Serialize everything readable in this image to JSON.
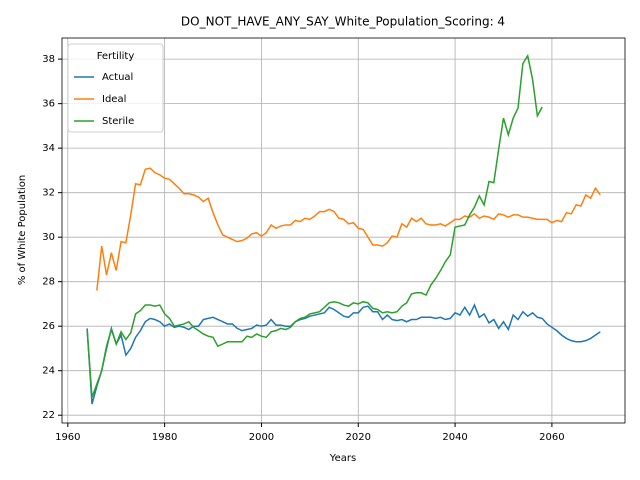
{
  "chart_data": {
    "type": "line",
    "title": "DO_NOT_HAVE_ANY_SAY_White_Population_Scoring: 4",
    "x_label": "Years",
    "y_label": "% of White Population",
    "legend_title": "Fertility",
    "legend_position": "upper left",
    "grid": true,
    "xlim": [
      1958.8,
      2075.1
    ],
    "xticks": [
      1960,
      1980,
      2000,
      2020,
      2040,
      2060
    ],
    "ylim": [
      21.65,
      38.95
    ],
    "yticks": [
      22,
      24,
      26,
      28,
      30,
      32,
      34,
      36,
      38
    ],
    "x": [
      1964,
      1965,
      1966,
      1967,
      1968,
      1969,
      1970,
      1971,
      1972,
      1973,
      1974,
      1975,
      1976,
      1977,
      1978,
      1979,
      1980,
      1981,
      1982,
      1983,
      1984,
      1985,
      1986,
      1987,
      1988,
      1989,
      1990,
      1991,
      1992,
      1993,
      1994,
      1995,
      1996,
      1997,
      1998,
      1999,
      2000,
      2001,
      2002,
      2003,
      2004,
      2005,
      2006,
      2007,
      2008,
      2009,
      2010,
      2011,
      2012,
      2013,
      2014,
      2015,
      2016,
      2017,
      2018,
      2019,
      2020,
      2021,
      2022,
      2023,
      2024,
      2025,
      2026,
      2027,
      2028,
      2029,
      2030,
      2031,
      2032,
      2033,
      2034,
      2035,
      2036,
      2037,
      2038,
      2039,
      2040,
      2041,
      2042,
      2043,
      2044,
      2045,
      2046,
      2047,
      2048,
      2049,
      2050,
      2051,
      2052,
      2053,
      2054,
      2055,
      2056,
      2057,
      2058,
      2059,
      2060,
      2061,
      2062,
      2063,
      2064,
      2065,
      2066,
      2067,
      2068,
      2069,
      2070
    ],
    "series": [
      {
        "name": "Actual",
        "color": "#1f77b4",
        "values": [
          25.9,
          22.5,
          23.3,
          24.0,
          25.0,
          25.9,
          25.2,
          25.6,
          24.7,
          25.0,
          25.5,
          25.8,
          26.2,
          26.35,
          26.3,
          26.2,
          26.0,
          26.1,
          25.95,
          26.0,
          25.95,
          25.85,
          26.0,
          26.0,
          26.3,
          26.35,
          26.4,
          26.3,
          26.2,
          26.1,
          26.1,
          25.9,
          25.8,
          25.85,
          25.9,
          26.05,
          26.0,
          26.05,
          26.3,
          26.05,
          26.05,
          26.0,
          26.0,
          26.2,
          26.3,
          26.35,
          26.45,
          26.5,
          26.55,
          26.6,
          26.85,
          26.75,
          26.6,
          26.45,
          26.4,
          26.6,
          26.6,
          26.85,
          26.9,
          26.65,
          26.65,
          26.3,
          26.5,
          26.3,
          26.25,
          26.3,
          26.2,
          26.3,
          26.3,
          26.4,
          26.4,
          26.4,
          26.35,
          26.4,
          26.3,
          26.35,
          26.6,
          26.5,
          26.85,
          26.5,
          26.95,
          26.4,
          26.55,
          26.15,
          26.3,
          25.9,
          26.2,
          25.85,
          26.5,
          26.3,
          26.65,
          26.45,
          26.6,
          26.4,
          26.35,
          26.1,
          25.95,
          25.8,
          25.6,
          25.45,
          25.35,
          25.3,
          25.3,
          25.35,
          25.45,
          25.6,
          25.75
        ]
      },
      {
        "name": "Ideal",
        "color": "#ff7f0e",
        "values": [
          null,
          null,
          27.6,
          29.6,
          28.3,
          29.3,
          28.5,
          29.8,
          29.75,
          31.0,
          32.4,
          32.35,
          33.05,
          33.1,
          32.9,
          32.8,
          32.65,
          32.6,
          32.4,
          32.2,
          31.95,
          31.95,
          31.9,
          31.8,
          31.6,
          31.75,
          31.1,
          30.55,
          30.1,
          30.0,
          29.9,
          29.8,
          29.85,
          29.95,
          30.15,
          30.2,
          30.05,
          30.2,
          30.55,
          30.4,
          30.5,
          30.55,
          30.55,
          30.75,
          30.7,
          30.85,
          30.8,
          30.95,
          31.15,
          31.15,
          31.25,
          31.15,
          30.85,
          30.8,
          30.6,
          30.65,
          30.4,
          30.35,
          30.0,
          29.65,
          29.65,
          29.6,
          29.75,
          30.05,
          30.0,
          30.6,
          30.45,
          30.85,
          30.7,
          30.85,
          30.6,
          30.55,
          30.55,
          30.6,
          30.5,
          30.65,
          30.8,
          30.8,
          30.95,
          30.9,
          31.05,
          30.85,
          30.95,
          30.9,
          30.8,
          31.05,
          31.0,
          30.9,
          31.0,
          31.0,
          30.9,
          30.9,
          30.85,
          30.8,
          30.8,
          30.8,
          30.65,
          30.75,
          30.7,
          31.1,
          31.05,
          31.45,
          31.4,
          31.9,
          31.75,
          32.2,
          31.9
        ]
      },
      {
        "name": "Sterile",
        "color": "#2ca02c",
        "values": [
          25.8,
          22.8,
          23.4,
          24.0,
          25.1,
          25.85,
          25.2,
          25.75,
          25.4,
          25.7,
          26.55,
          26.7,
          26.95,
          26.95,
          26.9,
          26.95,
          26.55,
          26.35,
          26.0,
          26.05,
          26.1,
          26.2,
          25.95,
          25.8,
          25.65,
          25.55,
          25.5,
          25.1,
          25.2,
          25.3,
          25.3,
          25.3,
          25.3,
          25.55,
          25.5,
          25.65,
          25.55,
          25.5,
          25.75,
          25.8,
          25.9,
          25.85,
          25.95,
          26.2,
          26.35,
          26.4,
          26.55,
          26.6,
          26.65,
          26.85,
          27.05,
          27.1,
          27.05,
          26.95,
          26.9,
          27.05,
          27.0,
          27.1,
          27.05,
          26.8,
          26.75,
          26.6,
          26.65,
          26.6,
          26.65,
          26.9,
          27.05,
          27.45,
          27.5,
          27.5,
          27.4,
          27.85,
          28.15,
          28.5,
          28.9,
          29.2,
          30.45,
          30.5,
          30.55,
          31.0,
          31.35,
          31.85,
          31.45,
          32.5,
          32.45,
          33.95,
          35.35,
          34.6,
          35.35,
          35.8,
          37.8,
          38.15,
          37.1,
          35.45,
          35.85,
          null,
          null,
          null,
          null,
          null,
          null,
          null,
          null,
          null,
          null,
          null,
          null
        ]
      }
    ]
  }
}
